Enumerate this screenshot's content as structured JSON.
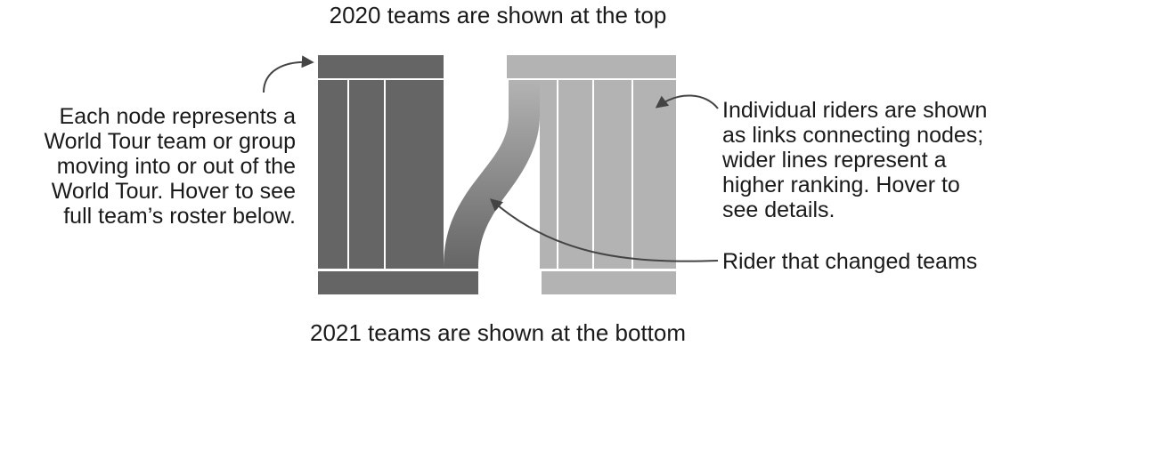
{
  "annotations": {
    "top_caption": "2020 teams are shown at the top",
    "bottom_caption": "2021 teams are shown at the bottom",
    "left_note": [
      "Each node represents a",
      "World Tour team or group",
      "moving into or out of the",
      "World Tour. Hover to see",
      "full team’s roster below."
    ],
    "right_note": [
      "Individual riders are shown",
      "as links connecting nodes;",
      "wider lines represent a",
      "higher ranking. Hover to",
      "see details."
    ],
    "rider_note": "Rider that changed teams"
  },
  "colors": {
    "dark_team": "#656565",
    "light_team": "#b3b3b3",
    "link_gradient_start": "#b3b3b3",
    "link_gradient_end": "#656565",
    "divider": "#ffffff",
    "arrow": "#444444"
  }
}
